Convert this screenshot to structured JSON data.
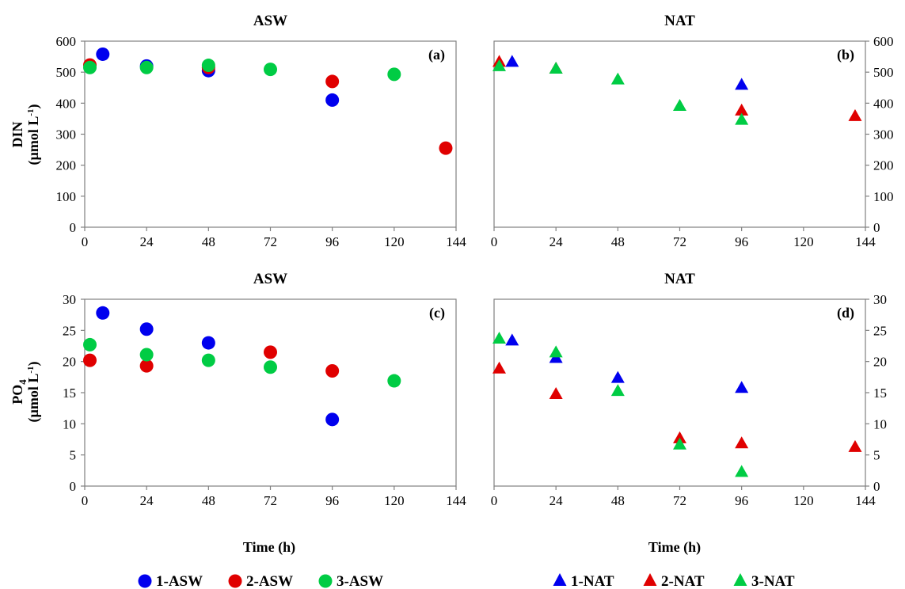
{
  "colors": {
    "series1": "#0000ee",
    "series2": "#e00000",
    "series3": "#00cc44",
    "frame": "#808080"
  },
  "x_axis_title": "Time (h)",
  "legend_left": [
    {
      "label": "1-ASW",
      "color": "#0000ee",
      "marker": "circle"
    },
    {
      "label": "2-ASW",
      "color": "#e00000",
      "marker": "circle"
    },
    {
      "label": "3-ASW",
      "color": "#00cc44",
      "marker": "circle"
    }
  ],
  "legend_right": [
    {
      "label": "1-NAT",
      "color": "#0000ee",
      "marker": "triangle"
    },
    {
      "label": "2-NAT",
      "color": "#e00000",
      "marker": "triangle"
    },
    {
      "label": "3-NAT",
      "color": "#00cc44",
      "marker": "triangle"
    }
  ],
  "y_titles": {
    "top": {
      "line1": "DIN",
      "line2": "(µmol L",
      "sup": "-1",
      "tail": ")"
    },
    "bottom": {
      "line1": "PO",
      "sub": "4",
      "line2": "(µmol L",
      "sup": "-1",
      "tail": ")"
    }
  },
  "chart_data": [
    {
      "type": "scatter",
      "title": "ASW",
      "tag": "(a)",
      "marker": "circle",
      "xlim": [
        0,
        144
      ],
      "xticks": [
        0,
        24,
        48,
        72,
        96,
        120,
        144
      ],
      "ylim": [
        0,
        600
      ],
      "yticks": [
        0,
        100,
        200,
        300,
        400,
        500,
        600
      ],
      "y_axis_side": "left",
      "series": [
        {
          "name": "1-ASW",
          "color": "#0000ee",
          "points": [
            [
              7,
              558
            ],
            [
              24,
              520
            ],
            [
              48,
              505
            ],
            [
              96,
              410
            ]
          ]
        },
        {
          "name": "2-ASW",
          "color": "#e00000",
          "points": [
            [
              2,
              523
            ],
            [
              48,
              515
            ],
            [
              96,
              470
            ],
            [
              140,
              255
            ]
          ]
        },
        {
          "name": "3-ASW",
          "color": "#00cc44",
          "points": [
            [
              2,
              515
            ],
            [
              24,
              515
            ],
            [
              48,
              522
            ],
            [
              72,
              509
            ],
            [
              120,
              493
            ]
          ]
        }
      ]
    },
    {
      "type": "scatter",
      "title": "NAT",
      "tag": "(b)",
      "marker": "triangle",
      "xlim": [
        0,
        144
      ],
      "xticks": [
        0,
        24,
        48,
        72,
        96,
        120,
        144
      ],
      "ylim": [
        0,
        600
      ],
      "yticks": [
        0,
        100,
        200,
        300,
        400,
        500,
        600
      ],
      "y_axis_side": "right",
      "series": [
        {
          "name": "1-NAT",
          "color": "#0000ee",
          "points": [
            [
              7,
              532
            ],
            [
              96,
              458
            ]
          ]
        },
        {
          "name": "2-NAT",
          "color": "#e00000",
          "points": [
            [
              2,
              532
            ],
            [
              24,
              510
            ],
            [
              96,
              375
            ],
            [
              140,
              357
            ]
          ]
        },
        {
          "name": "3-NAT",
          "color": "#00cc44",
          "points": [
            [
              2,
              518
            ],
            [
              24,
              510
            ],
            [
              48,
              475
            ],
            [
              72,
              390
            ],
            [
              96,
              345
            ]
          ]
        }
      ]
    },
    {
      "type": "scatter",
      "title": "ASW",
      "tag": "(c)",
      "marker": "circle",
      "xlim": [
        0,
        144
      ],
      "xticks": [
        0,
        24,
        48,
        72,
        96,
        120,
        144
      ],
      "ylim": [
        0,
        30
      ],
      "yticks": [
        0,
        5,
        10,
        15,
        20,
        25,
        30
      ],
      "y_axis_side": "left",
      "series": [
        {
          "name": "1-ASW",
          "color": "#0000ee",
          "points": [
            [
              7,
              27.8
            ],
            [
              24,
              25.2
            ],
            [
              48,
              23.0
            ],
            [
              96,
              10.7
            ]
          ]
        },
        {
          "name": "2-ASW",
          "color": "#e00000",
          "points": [
            [
              2,
              20.2
            ],
            [
              24,
              19.3
            ],
            [
              72,
              21.5
            ],
            [
              96,
              18.5
            ]
          ]
        },
        {
          "name": "3-ASW",
          "color": "#00cc44",
          "points": [
            [
              2,
              22.7
            ],
            [
              24,
              21.1
            ],
            [
              48,
              20.2
            ],
            [
              72,
              19.1
            ],
            [
              120,
              16.9
            ]
          ]
        }
      ]
    },
    {
      "type": "scatter",
      "title": "NAT",
      "tag": "(d)",
      "marker": "triangle",
      "xlim": [
        0,
        144
      ],
      "xticks": [
        0,
        24,
        48,
        72,
        96,
        120,
        144
      ],
      "ylim": [
        0,
        30
      ],
      "yticks": [
        0,
        5,
        10,
        15,
        20,
        25,
        30
      ],
      "y_axis_side": "right",
      "series": [
        {
          "name": "1-NAT",
          "color": "#0000ee",
          "points": [
            [
              7,
              23.3
            ],
            [
              24,
              20.5
            ],
            [
              48,
              17.3
            ],
            [
              96,
              15.7
            ]
          ]
        },
        {
          "name": "2-NAT",
          "color": "#e00000",
          "points": [
            [
              2,
              18.8
            ],
            [
              24,
              14.7
            ],
            [
              72,
              7.6
            ],
            [
              96,
              6.8
            ],
            [
              140,
              6.2
            ]
          ]
        },
        {
          "name": "3-NAT",
          "color": "#00cc44",
          "points": [
            [
              2,
              23.6
            ],
            [
              24,
              21.4
            ],
            [
              48,
              15.2
            ],
            [
              72,
              6.6
            ],
            [
              96,
              2.2
            ]
          ]
        }
      ]
    }
  ]
}
